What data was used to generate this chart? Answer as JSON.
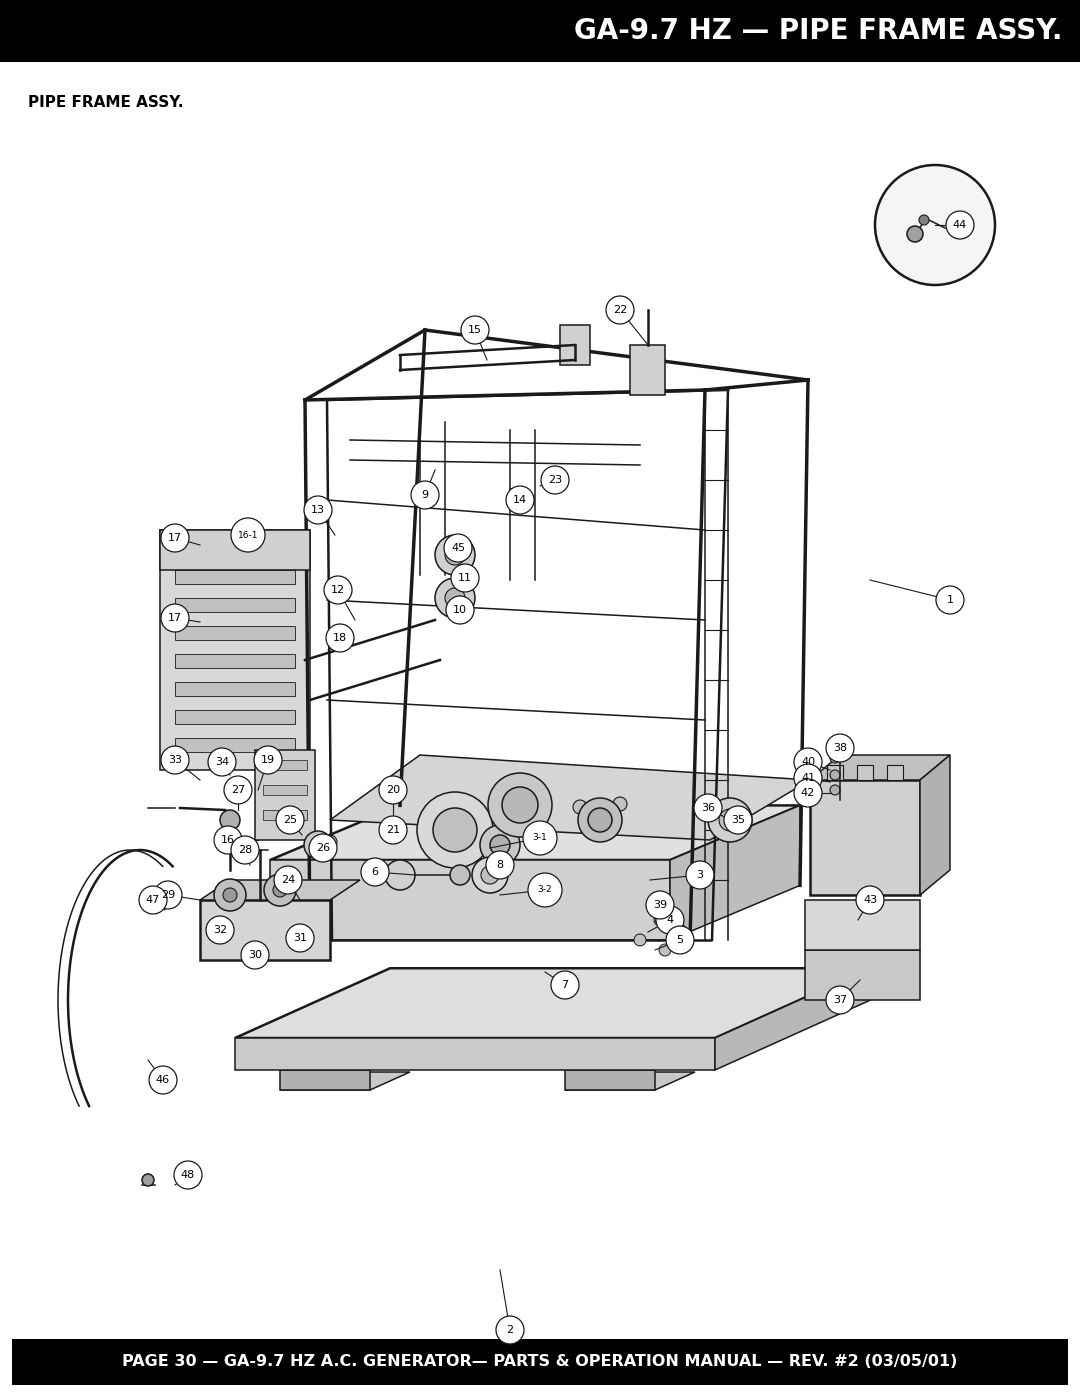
{
  "page_title": "GA-9.7 HZ — PIPE FRAME ASSY.",
  "section_label": "PIPE FRAME ASSY.",
  "footer_text": "PAGE 30 — GA-9.7 HZ A.C. GENERATOR— PARTS & OPERATION MANUAL — REV. #2 (03/05/01)",
  "header_bg": "#000000",
  "header_text_color": "#ffffff",
  "footer_bg": "#000000",
  "footer_text_color": "#ffffff",
  "page_bg": "#ffffff",
  "body_text_color": "#000000",
  "header_font_size": 20,
  "footer_font_size": 11.5,
  "section_label_font_size": 11,
  "fig_width": 10.8,
  "fig_height": 13.97,
  "dpi": 100
}
